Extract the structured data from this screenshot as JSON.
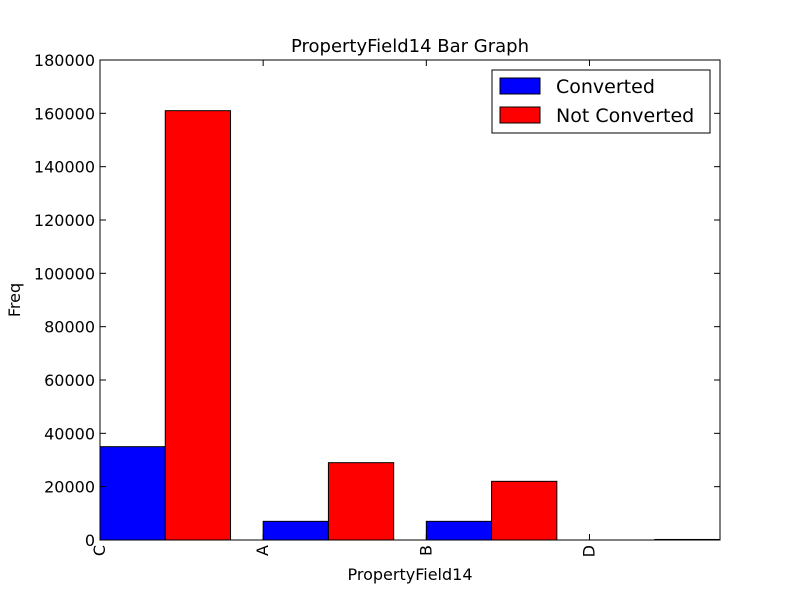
{
  "chart_data": {
    "type": "bar",
    "title": "PropertyField14 Bar Graph",
    "xlabel": "PropertyField14",
    "ylabel": "Freq",
    "categories": [
      "C",
      "A",
      "B",
      "D"
    ],
    "series": [
      {
        "name": "Converted",
        "color": "#0000ff",
        "values": [
          35000,
          7000,
          7000,
          0
        ]
      },
      {
        "name": "Not Converted",
        "color": "#ff0000",
        "values": [
          161000,
          29000,
          22000,
          200
        ]
      }
    ],
    "ylim": [
      0,
      180000
    ],
    "yticks": [
      0,
      20000,
      40000,
      60000,
      80000,
      100000,
      120000,
      140000,
      160000,
      180000
    ],
    "grid": false,
    "legend_position": "top-right"
  }
}
